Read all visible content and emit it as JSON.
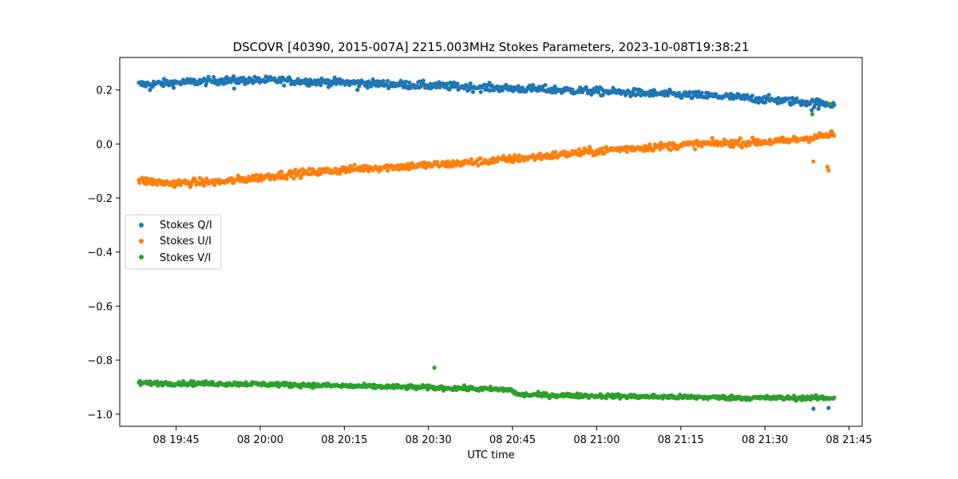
{
  "chart_data": {
    "type": "scatter",
    "title": "DSCOVR [40390, 2015-007A] 2215.003MHz Stokes Parameters, 2023-10-08T19:38:21",
    "xlabel": "UTC time",
    "ylabel": "",
    "x_unit": "minutes after 08 19:38:21 UTC",
    "xlim": [
      -3.4,
      129
    ],
    "ylim": [
      -1.045,
      0.32
    ],
    "x_ticks": [
      {
        "value": 6.65,
        "label": "08 19:45"
      },
      {
        "value": 21.65,
        "label": "08 20:00"
      },
      {
        "value": 36.65,
        "label": "08 20:15"
      },
      {
        "value": 51.65,
        "label": "08 20:30"
      },
      {
        "value": 66.65,
        "label": "08 20:45"
      },
      {
        "value": 81.65,
        "label": "08 21:00"
      },
      {
        "value": 96.65,
        "label": "08 21:15"
      },
      {
        "value": 111.65,
        "label": "08 21:30"
      },
      {
        "value": 126.65,
        "label": "08 21:45"
      }
    ],
    "y_ticks": [
      {
        "value": 0.2,
        "label": "0.2"
      },
      {
        "value": 0.0,
        "label": "0.0"
      },
      {
        "value": -0.2,
        "label": "−0.2"
      },
      {
        "value": -0.4,
        "label": "−0.4"
      },
      {
        "value": -0.6,
        "label": "−0.6"
      },
      {
        "value": -0.8,
        "label": "−0.8"
      },
      {
        "value": -1.0,
        "label": "−1.0"
      }
    ],
    "grid": false,
    "legend_position": "center-left",
    "sampling": {
      "x_start": 0,
      "x_end": 124,
      "count": 800
    },
    "series": [
      {
        "name": "Stokes Q/I",
        "color": "#1f77b4",
        "trend": [
          [
            0,
            0.22
          ],
          [
            15,
            0.235
          ],
          [
            25,
            0.235
          ],
          [
            40,
            0.225
          ],
          [
            60,
            0.21
          ],
          [
            75,
            0.2
          ],
          [
            90,
            0.188
          ],
          [
            105,
            0.175
          ],
          [
            115,
            0.16
          ],
          [
            124,
            0.148
          ]
        ],
        "noise": 0.007,
        "outliers": [
          [
            2,
            0.2
          ],
          [
            17,
            0.205
          ],
          [
            39,
            0.2
          ],
          [
            120,
            0.125
          ],
          [
            121.2,
            0.13
          ],
          [
            122.6,
            0.145
          ],
          [
            123.2,
            0.148
          ]
        ]
      },
      {
        "name": "Stokes U/I",
        "color": "#ff7f0e",
        "trend": [
          [
            0,
            -0.135
          ],
          [
            5,
            -0.145
          ],
          [
            15,
            -0.14
          ],
          [
            25,
            -0.115
          ],
          [
            40,
            -0.09
          ],
          [
            55,
            -0.075
          ],
          [
            70,
            -0.05
          ],
          [
            85,
            -0.02
          ],
          [
            100,
            0.0
          ],
          [
            115,
            0.01
          ],
          [
            124,
            0.035
          ]
        ],
        "noise": 0.007,
        "outliers": [
          [
            120.3,
            -0.065
          ],
          [
            122.8,
            -0.085
          ],
          [
            123,
            -0.098
          ]
        ]
      },
      {
        "name": "Stokes V/I",
        "color": "#2ca02c",
        "trend": [
          [
            0,
            -0.885
          ],
          [
            20,
            -0.888
          ],
          [
            40,
            -0.897
          ],
          [
            55,
            -0.903
          ],
          [
            66.5,
            -0.91
          ],
          [
            67.5,
            -0.928
          ],
          [
            90,
            -0.935
          ],
          [
            110,
            -0.94
          ],
          [
            124,
            -0.94
          ]
        ],
        "noise": 0.004,
        "outliers": [
          [
            52.7,
            -0.828
          ],
          [
            120.1,
            0.11
          ],
          [
            123.3,
            0.148
          ]
        ]
      }
    ],
    "extra_points": [
      {
        "series": "Stokes Q/I",
        "x": 120.3,
        "y": -0.98
      },
      {
        "series": "Stokes Q/I",
        "x": 123,
        "y": -0.977
      }
    ]
  }
}
